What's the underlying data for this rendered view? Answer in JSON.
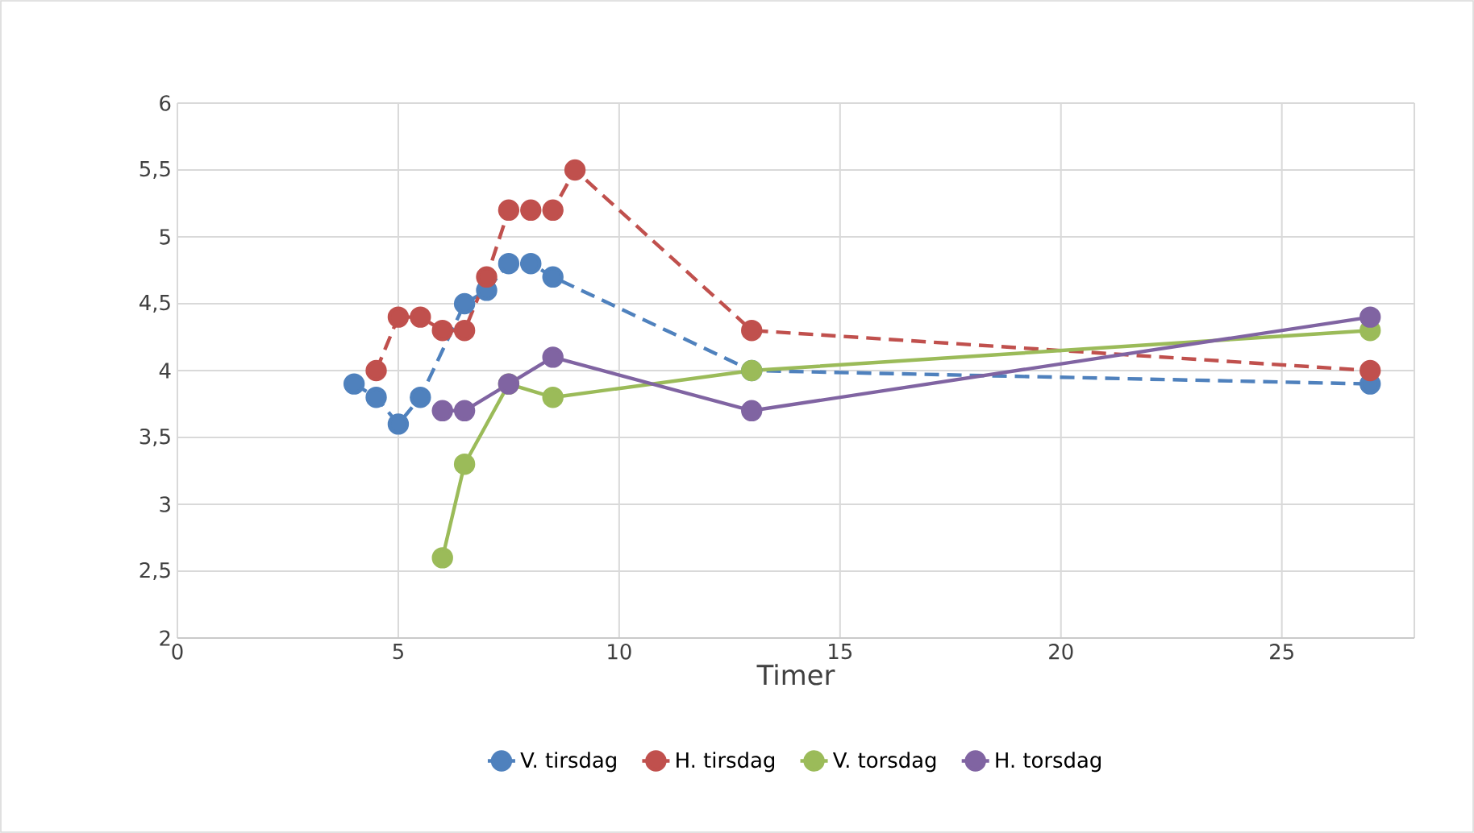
{
  "chart_data": {
    "type": "line",
    "xlabel": "Timer",
    "series": [
      {
        "name": "V. tirsdag",
        "color": "#4f81bd",
        "line_style": "dashed",
        "x": [
          4,
          4.5,
          5,
          5.5,
          6.5,
          7,
          7.5,
          8,
          8.5,
          13,
          27
        ],
        "values": [
          3.9,
          3.8,
          3.6,
          3.8,
          4.5,
          4.6,
          4.8,
          4.8,
          4.7,
          4.0,
          3.9
        ]
      },
      {
        "name": "H. tirsdag",
        "color": "#c0504d",
        "line_style": "dashed",
        "x": [
          4.5,
          5,
          5.5,
          6,
          6.5,
          7,
          7.5,
          8,
          8.5,
          9,
          13,
          27
        ],
        "values": [
          4.0,
          4.4,
          4.4,
          4.3,
          4.3,
          4.7,
          5.2,
          5.2,
          5.2,
          5.5,
          4.3,
          4.0
        ]
      },
      {
        "name": "V. torsdag",
        "color": "#9bbb59",
        "line_style": "solid",
        "x": [
          6,
          6.5,
          7.5,
          8.5,
          13,
          27
        ],
        "values": [
          2.6,
          3.3,
          3.9,
          3.8,
          4.0,
          4.3
        ]
      },
      {
        "name": "H. torsdag",
        "color": "#8064a2",
        "line_style": "solid",
        "x": [
          6,
          6.5,
          7.5,
          8.5,
          13,
          27
        ],
        "values": [
          3.7,
          3.7,
          3.9,
          4.1,
          3.7,
          4.4
        ]
      }
    ],
    "xlim": [
      0,
      28
    ],
    "ylim": [
      2,
      6
    ],
    "xticks": [
      0,
      5,
      10,
      15,
      20,
      25,
      {
        "value": 28,
        "label": null
      }
    ],
    "yticks": [
      2,
      {
        "value": 2.5,
        "label": "2,5"
      },
      3,
      {
        "value": 3.5,
        "label": "3,5"
      },
      4,
      {
        "value": 4.5,
        "label": "4,5"
      },
      5,
      {
        "value": 5.5,
        "label": "5,5"
      },
      6
    ],
    "grid": true,
    "legend": "bottom",
    "marker": "circle"
  }
}
